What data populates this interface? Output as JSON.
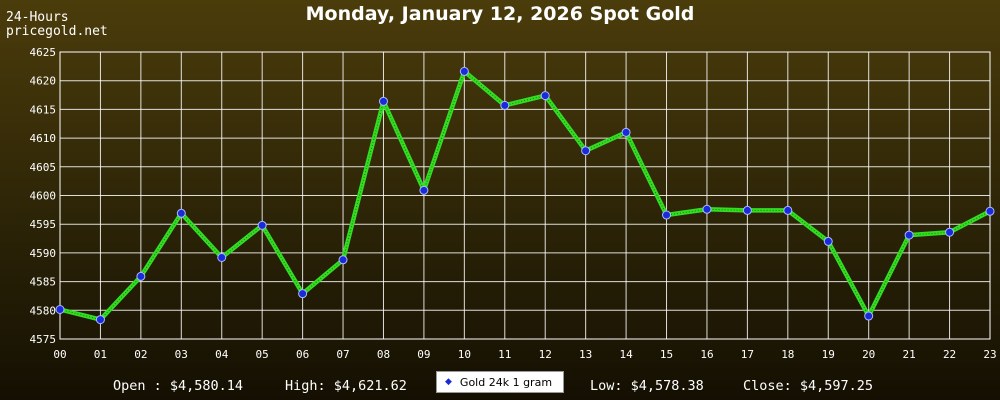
{
  "header": {
    "brand_line1": "24-Hours",
    "brand_line2": "pricegold.net",
    "title": "Monday, January 12, 2026 Spot Gold"
  },
  "footer": {
    "open": "Open : $4,580.14",
    "high": "High: $4,621.62",
    "low": "Low: $4,578.38",
    "close": "Close: $4,597.25",
    "legend_label": "Gold 24k 1 gram"
  },
  "colors": {
    "line": "#33dd22",
    "marker_fill": "#1a2ad8",
    "marker_stroke": "#aabbff",
    "grid": "#ffffff",
    "axis_text": "#ffffff"
  },
  "chart_data": {
    "type": "line",
    "title": "Monday, January 12, 2026 Spot Gold",
    "xlabel": "",
    "ylabel": "",
    "x": [
      "00",
      "01",
      "02",
      "03",
      "04",
      "05",
      "06",
      "07",
      "08",
      "09",
      "10",
      "11",
      "12",
      "13",
      "14",
      "15",
      "16",
      "17",
      "18",
      "19",
      "20",
      "21",
      "22",
      "23"
    ],
    "series": [
      {
        "name": "Gold 24k 1 gram",
        "values": [
          4580.14,
          4578.38,
          4585.9,
          4596.9,
          4589.2,
          4594.8,
          4582.9,
          4588.8,
          4616.4,
          4600.9,
          4621.62,
          4615.7,
          4617.4,
          4607.8,
          4611.0,
          4596.6,
          4597.6,
          4597.4,
          4597.4,
          4592.0,
          4579.0,
          4593.1,
          4593.6,
          4597.25
        ]
      }
    ],
    "yticks": [
      4575,
      4580,
      4585,
      4590,
      4595,
      4600,
      4605,
      4610,
      4615,
      4620,
      4625
    ],
    "ylim": [
      4575,
      4625
    ],
    "grid": true,
    "legend": "bottom-center"
  }
}
